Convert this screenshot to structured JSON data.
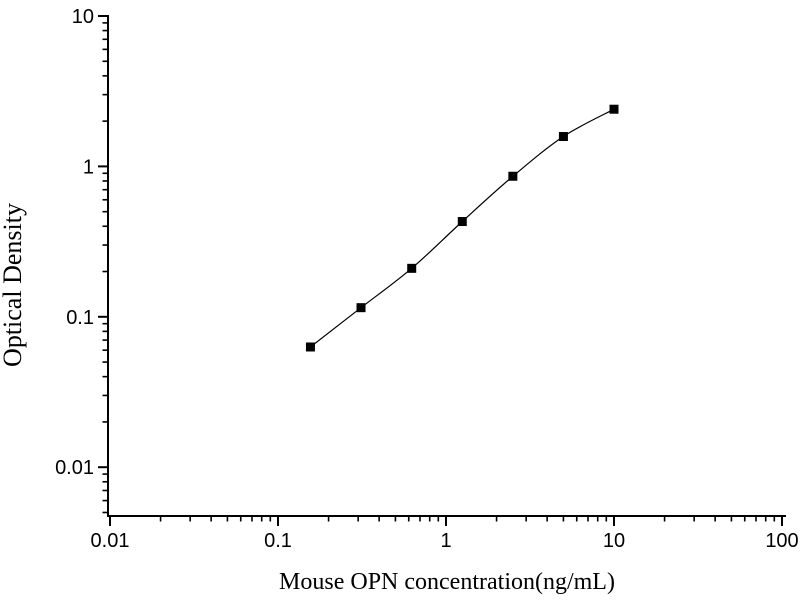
{
  "figure": {
    "background": "#ffffff",
    "foreground": "#000000"
  },
  "chart_data": {
    "type": "line",
    "subtype": "scatter-line-log-log",
    "title": "",
    "xlabel": "Mouse OPN concentration(ng/mL)",
    "ylabel": "Optical Density",
    "x_scale": "log",
    "y_scale": "log",
    "xlim": [
      0.01,
      100
    ],
    "ylim": [
      0.005,
      10
    ],
    "grid": false,
    "legend": "none",
    "x": [
      0.156,
      0.312,
      0.625,
      1.25,
      2.5,
      5,
      10
    ],
    "y": [
      0.063,
      0.115,
      0.21,
      0.43,
      0.86,
      1.58,
      2.4
    ],
    "x_tick_values": [
      0.01,
      0.1,
      1,
      10,
      100
    ],
    "x_tick_labels": [
      "0.01",
      "0.1",
      "1",
      "10",
      "100"
    ],
    "y_tick_values": [
      0.01,
      0.1,
      1,
      10
    ],
    "y_tick_labels": [
      "0.01",
      "0.1",
      "1",
      "10"
    ],
    "marker": "filled-square",
    "marker_color": "#000000",
    "line_color": "#000000",
    "axis_color": "#000000"
  }
}
